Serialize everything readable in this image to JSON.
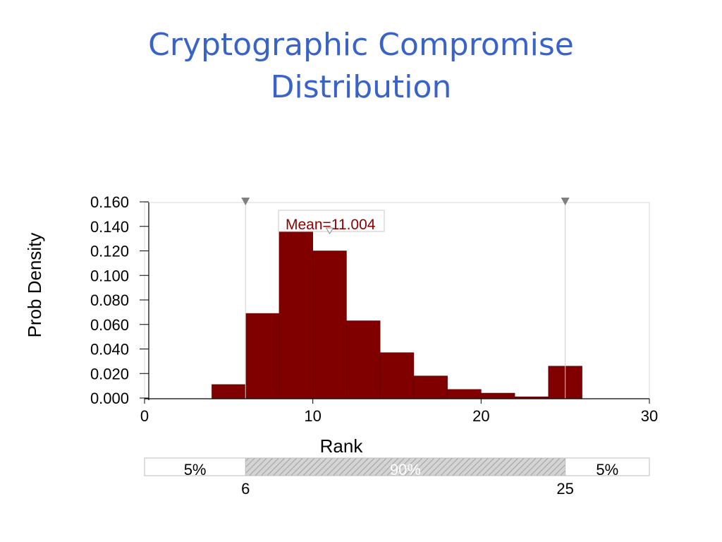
{
  "slide": {
    "title_line1": "Cryptographic Compromise",
    "title_line2": "Distribution"
  },
  "chart_data": {
    "type": "bar",
    "subtype": "histogram",
    "xlabel": "Rank",
    "ylabel": "Prob Density",
    "xlim": [
      0,
      30
    ],
    "ylim": [
      0,
      0.16
    ],
    "x_ticks": [
      "0",
      "10",
      "20",
      "30"
    ],
    "x_tick_values": [
      0,
      10,
      20,
      30
    ],
    "y_ticks": [
      "0.000",
      "0.020",
      "0.040",
      "0.060",
      "0.080",
      "0.100",
      "0.120",
      "0.140",
      "0.160"
    ],
    "y_tick_values": [
      0,
      0.02,
      0.04,
      0.06,
      0.08,
      0.1,
      0.12,
      0.14,
      0.16
    ],
    "bins": [
      {
        "x0": 4,
        "x1": 6,
        "value": 0.011
      },
      {
        "x0": 6,
        "x1": 8,
        "value": 0.069
      },
      {
        "x0": 8,
        "x1": 10,
        "value": 0.139
      },
      {
        "x0": 10,
        "x1": 12,
        "value": 0.12
      },
      {
        "x0": 12,
        "x1": 14,
        "value": 0.063
      },
      {
        "x0": 14,
        "x1": 16,
        "value": 0.037
      },
      {
        "x0": 16,
        "x1": 18,
        "value": 0.018
      },
      {
        "x0": 18,
        "x1": 20,
        "value": 0.007
      },
      {
        "x0": 20,
        "x1": 22,
        "value": 0.004
      },
      {
        "x0": 22,
        "x1": 24,
        "value": 0.001
      },
      {
        "x0": 24,
        "x1": 26,
        "value": 0.026
      }
    ],
    "bar_color": "#800000",
    "mean": {
      "value": 11.004,
      "label": "Mean=11.004"
    },
    "markers": [
      6,
      25
    ],
    "marker_color": "#808080",
    "confidence_band": {
      "left": 6,
      "right": 25,
      "left_label": "5%",
      "middle_label": "90%",
      "right_label": "5%",
      "left_value_label": "6",
      "right_value_label": "25"
    },
    "grid": false
  }
}
